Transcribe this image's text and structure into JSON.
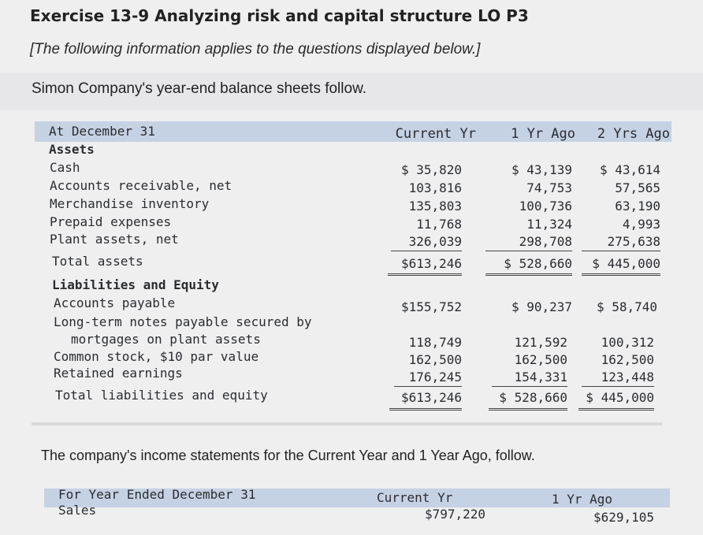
{
  "exercise": {
    "title": "Exercise 13-9 Analyzing risk and capital structure LO P3",
    "note": "[The following information applies to the questions displayed below.]"
  },
  "intro": "Simon Company's year-end balance sheets follow.",
  "balance_sheet": {
    "header": {
      "label": "At December 31",
      "col1": "Current Yr",
      "col2": "1 Yr Ago",
      "col3": "2 Yrs Ago"
    },
    "assets_heading": "Assets",
    "assets": [
      {
        "label": "Cash",
        "c1": "$ 35,820",
        "c2": "$ 43,139",
        "c3": "$ 43,614"
      },
      {
        "label": "Accounts receivable, net",
        "c1": "103,816",
        "c2": "74,753",
        "c3": "57,565"
      },
      {
        "label": "Merchandise inventory",
        "c1": "135,803",
        "c2": "100,736",
        "c3": "63,190"
      },
      {
        "label": "Prepaid expenses",
        "c1": "11,768",
        "c2": "11,324",
        "c3": "4,993"
      },
      {
        "label": "Plant assets, net",
        "c1": "326,039",
        "c2": "298,708",
        "c3": "275,638"
      }
    ],
    "total_assets": {
      "label": "Total assets",
      "c1": "$613,246",
      "c2": "$ 528,660",
      "c3": "$ 445,000"
    },
    "liabilities_heading": "Liabilities and Equity",
    "accounts_payable": {
      "label": "Accounts payable",
      "c1": "$155,752",
      "c2": "$ 90,237",
      "c3": "$ 58,740"
    },
    "long_term_notes": {
      "label_line1": "Long-term notes payable secured by",
      "label_line2": "mortgages on plant assets",
      "c1": "118,749",
      "c2": "121,592",
      "c3": "100,312"
    },
    "common_stock": {
      "label": "Common stock, $10 par value",
      "c1": "162,500",
      "c2": "162,500",
      "c3": "162,500"
    },
    "retained_earnings": {
      "label": "Retained earnings",
      "c1": "176,245",
      "c2": "154,331",
      "c3": "123,448"
    },
    "total_liabilities": {
      "label": "Total liabilities and equity",
      "c1": "$613,246",
      "c2": "$ 528,660",
      "c3": "$ 445,000"
    }
  },
  "intro2": "The company's income statements for the Current Year and 1 Year Ago, follow.",
  "income_statement": {
    "header": {
      "label": "For Year Ended December 31",
      "col1": "Current Yr",
      "col2": "1 Yr Ago"
    },
    "sales": {
      "label": "Sales",
      "c1": "$797,220",
      "c2": "$629,105"
    }
  }
}
